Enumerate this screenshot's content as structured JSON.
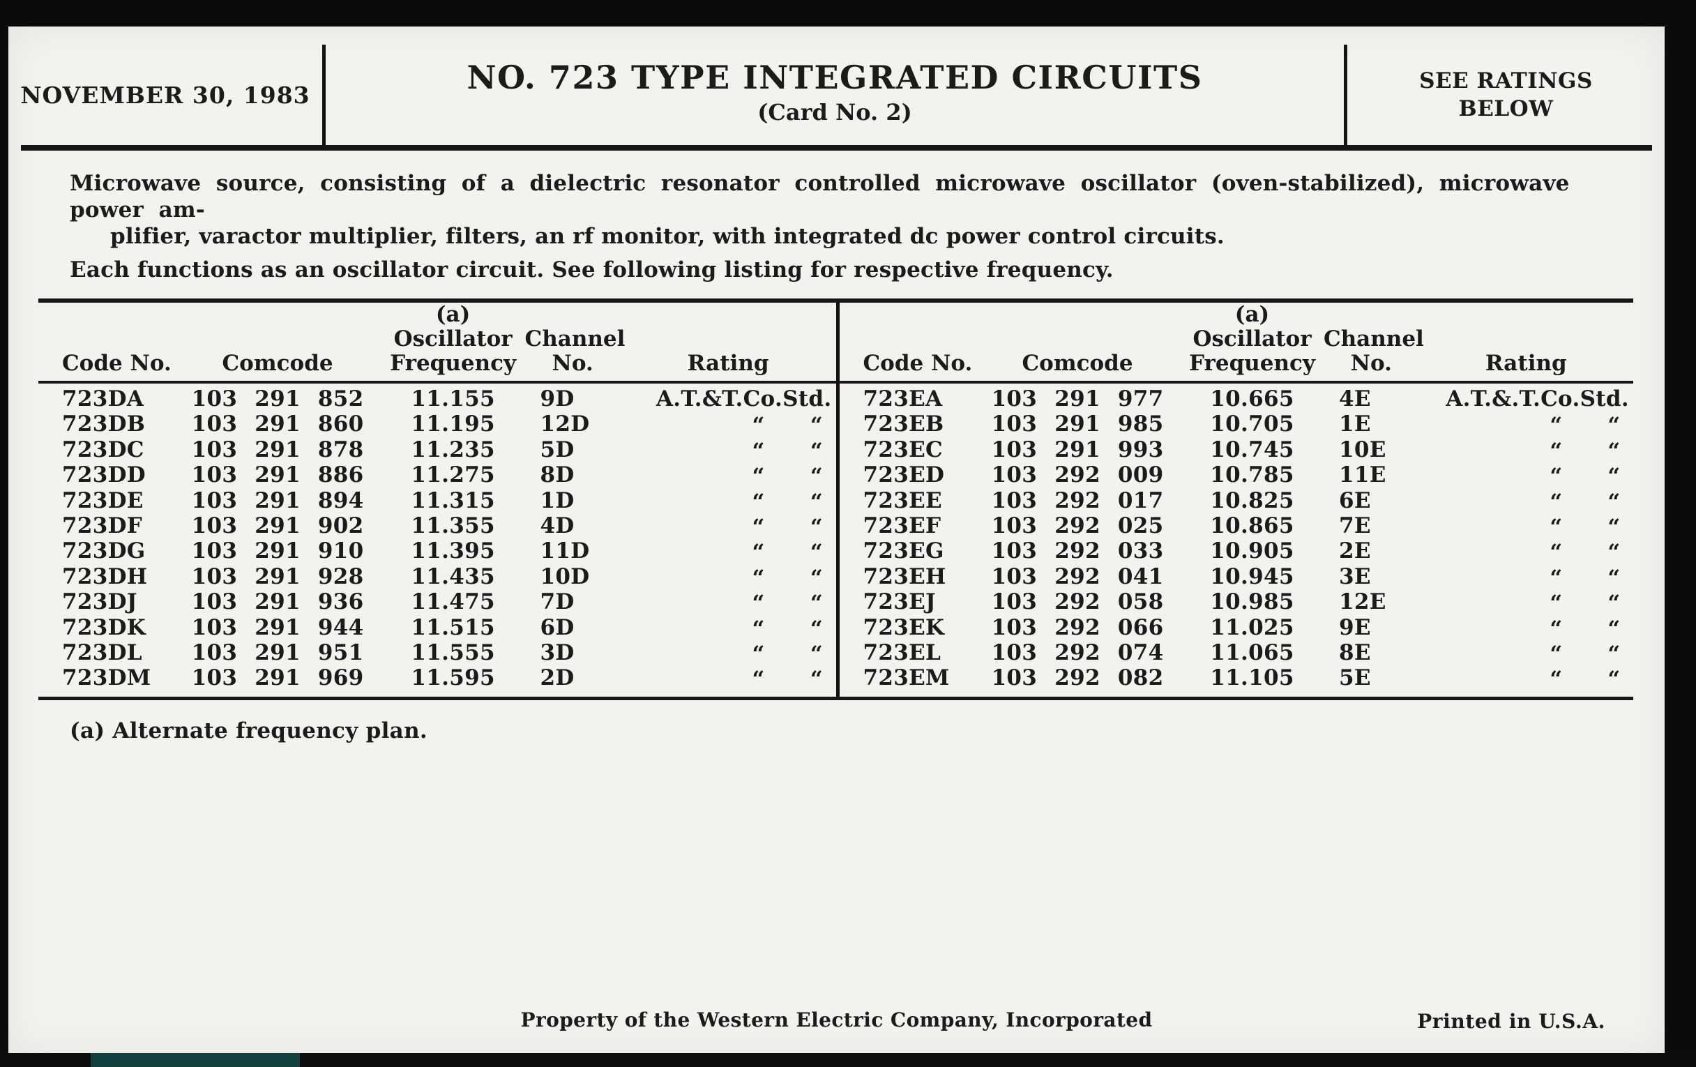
{
  "header": {
    "date": "NOVEMBER 30, 1983",
    "title": "NO. 723 TYPE INTEGRATED CIRCUITS",
    "subtitle": "(Card No. 2)",
    "ratings_note_line1": "SEE RATINGS",
    "ratings_note_line2": "BELOW"
  },
  "description": {
    "para1_line1": "Microwave source, consisting of a dielectric resonator controlled microwave oscillator (oven-stabilized), microwave power am-",
    "para1_line2": "plifier, varactor multiplier, filters, an rf monitor, with integrated dc power control circuits.",
    "para2": "Each functions as an oscillator circuit. See following listing for respective frequency."
  },
  "table": {
    "columns": {
      "code": "Code No.",
      "comcode": "Comcode",
      "freq_note": "(a)",
      "freq_line1": "Oscillator",
      "freq_line2": "Frequency",
      "channel_line1": "Channel",
      "channel_line2": "No.",
      "rating": "Rating"
    },
    "ditto": "“",
    "left_rows": [
      {
        "code": "723DA",
        "comcode": "103 291 852",
        "freq": "11.155",
        "channel": "9D",
        "rating": "A.T.&T.Co.Std."
      },
      {
        "code": "723DB",
        "comcode": "103 291 860",
        "freq": "11.195",
        "channel": "12D",
        "rating": "ditto"
      },
      {
        "code": "723DC",
        "comcode": "103 291 878",
        "freq": "11.235",
        "channel": "5D",
        "rating": "ditto"
      },
      {
        "code": "723DD",
        "comcode": "103 291 886",
        "freq": "11.275",
        "channel": "8D",
        "rating": "ditto"
      },
      {
        "code": "723DE",
        "comcode": "103 291 894",
        "freq": "11.315",
        "channel": "1D",
        "rating": "ditto"
      },
      {
        "code": "723DF",
        "comcode": "103 291 902",
        "freq": "11.355",
        "channel": "4D",
        "rating": "ditto"
      },
      {
        "code": "723DG",
        "comcode": "103 291 910",
        "freq": "11.395",
        "channel": "11D",
        "rating": "ditto"
      },
      {
        "code": "723DH",
        "comcode": "103 291 928",
        "freq": "11.435",
        "channel": "10D",
        "rating": "ditto"
      },
      {
        "code": "723DJ",
        "comcode": "103 291 936",
        "freq": "11.475",
        "channel": "7D",
        "rating": "ditto"
      },
      {
        "code": "723DK",
        "comcode": "103 291 944",
        "freq": "11.515",
        "channel": "6D",
        "rating": "ditto"
      },
      {
        "code": "723DL",
        "comcode": "103 291 951",
        "freq": "11.555",
        "channel": "3D",
        "rating": "ditto"
      },
      {
        "code": "723DM",
        "comcode": "103 291 969",
        "freq": "11.595",
        "channel": "2D",
        "rating": "ditto"
      }
    ],
    "right_rows": [
      {
        "code": "723EA",
        "comcode": "103 291 977",
        "freq": "10.665",
        "channel": "4E",
        "rating": "A.T.&.T.Co.Std."
      },
      {
        "code": "723EB",
        "comcode": "103 291 985",
        "freq": "10.705",
        "channel": "1E",
        "rating": "ditto"
      },
      {
        "code": "723EC",
        "comcode": "103 291 993",
        "freq": "10.745",
        "channel": "10E",
        "rating": "ditto"
      },
      {
        "code": "723ED",
        "comcode": "103 292 009",
        "freq": "10.785",
        "channel": "11E",
        "rating": "ditto"
      },
      {
        "code": "723EE",
        "comcode": "103 292 017",
        "freq": "10.825",
        "channel": "6E",
        "rating": "ditto"
      },
      {
        "code": "723EF",
        "comcode": "103 292 025",
        "freq": "10.865",
        "channel": "7E",
        "rating": "ditto"
      },
      {
        "code": "723EG",
        "comcode": "103 292 033",
        "freq": "10.905",
        "channel": "2E",
        "rating": "ditto"
      },
      {
        "code": "723EH",
        "comcode": "103 292 041",
        "freq": "10.945",
        "channel": "3E",
        "rating": "ditto"
      },
      {
        "code": "723EJ",
        "comcode": "103 292 058",
        "freq": "10.985",
        "channel": "12E",
        "rating": "ditto"
      },
      {
        "code": "723EK",
        "comcode": "103 292 066",
        "freq": "11.025",
        "channel": "9E",
        "rating": "ditto"
      },
      {
        "code": "723EL",
        "comcode": "103 292 074",
        "freq": "11.065",
        "channel": "8E",
        "rating": "ditto"
      },
      {
        "code": "723EM",
        "comcode": "103 292 082",
        "freq": "11.105",
        "channel": "5E",
        "rating": "ditto"
      }
    ]
  },
  "footnote": "(a) Alternate frequency plan.",
  "footer": {
    "center": "Property of the Western Electric Company, Incorporated",
    "right": "Printed in U.S.A."
  }
}
